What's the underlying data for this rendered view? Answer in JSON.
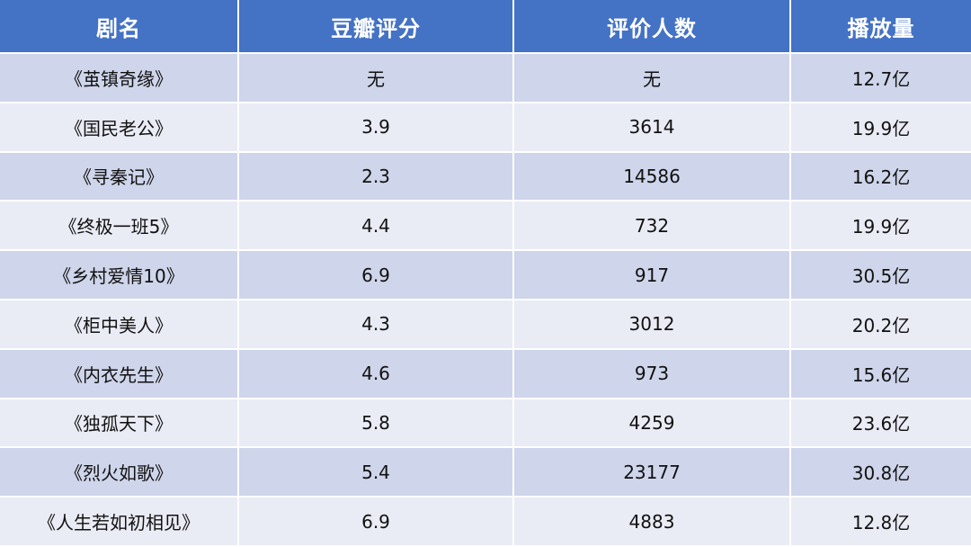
{
  "chart_data": {
    "type": "table",
    "columns": [
      "剧名",
      "豆瓣评分",
      "评价人数",
      "播放量"
    ],
    "rows": [
      [
        "《茧镇奇缘》",
        "无",
        "无",
        "12.7亿"
      ],
      [
        "《国民老公》",
        "3.9",
        "3614",
        "19.9亿"
      ],
      [
        "《寻秦记》",
        "2.3",
        "14586",
        "16.2亿"
      ],
      [
        "《终极一班5》",
        "4.4",
        "732",
        "19.9亿"
      ],
      [
        "《乡村爱情10》",
        "6.9",
        "917",
        "30.5亿"
      ],
      [
        "《柜中美人》",
        "4.3",
        "3012",
        "20.2亿"
      ],
      [
        "《内衣先生》",
        "4.6",
        "973",
        "15.6亿"
      ],
      [
        "《独孤天下》",
        "5.8",
        "4259",
        "23.6亿"
      ],
      [
        "《烈火如歌》",
        "5.4",
        "23177",
        "30.8亿"
      ],
      [
        "《人生若如初相见》",
        "6.9",
        "4883",
        "12.8亿"
      ]
    ]
  },
  "colors": {
    "header_bg": "#4472c4",
    "header_text": "#ffffff",
    "row_odd_bg": "#cfd5ea",
    "row_even_bg": "#e9ebf5",
    "cell_text": "#111111"
  }
}
